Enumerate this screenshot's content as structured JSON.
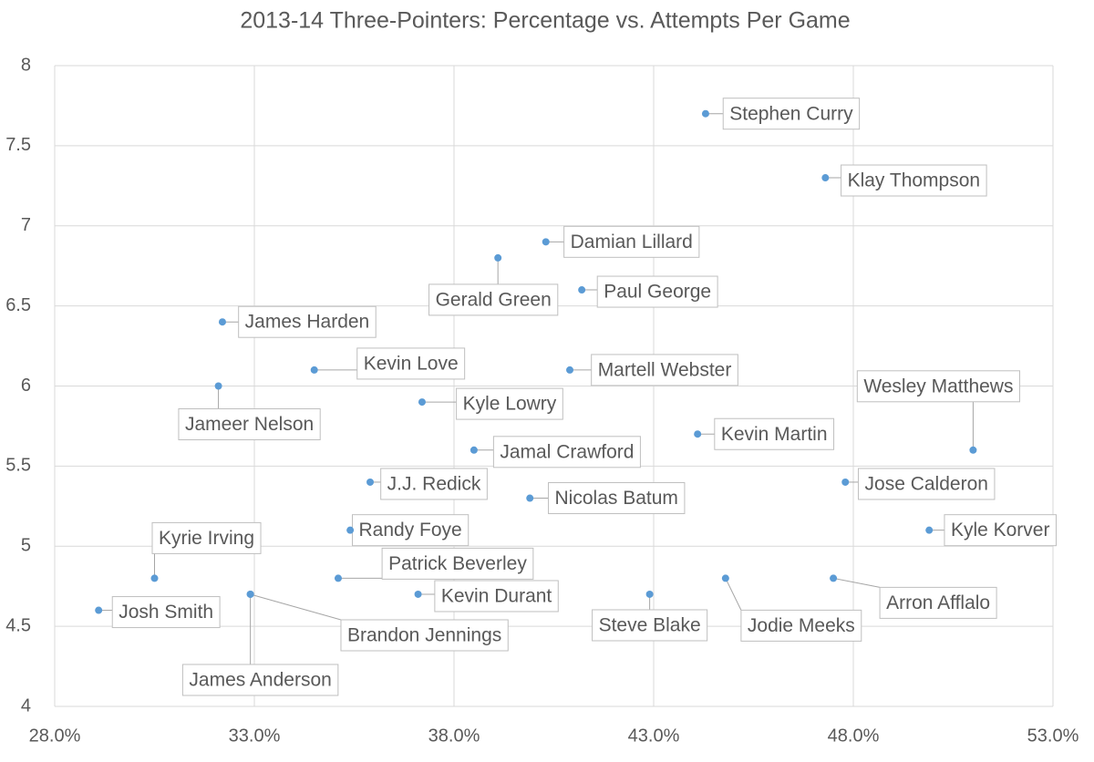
{
  "chart_data": {
    "type": "scatter",
    "title": "2013-14 Three-Pointers: Percentage vs. Attempts Per Game",
    "series": [
      {
        "color": "#5b9bd5",
        "point_labels": [
          "Stephen Curry",
          "Klay Thompson",
          "Damian Lillard",
          "Gerald Green",
          "Paul George",
          "James Harden",
          "Kevin Love",
          "Martell Webster",
          "Jameer Nelson",
          "Kyle Lowry",
          "Wesley Matthews",
          "Kevin Martin",
          "Jamal Crawford",
          "J.J. Redick",
          "Jose Calderon",
          "Nicolas Batum",
          "Randy Foye",
          "Kyle Korver",
          "Kyrie Irving",
          "Patrick Beverley",
          "Jodie Meeks",
          "Arron Afflalo",
          "Kevin Durant",
          "Steve Blake",
          "Brandon Jennings",
          "James Anderson",
          "Josh Smith"
        ],
        "x": [
          44.3,
          47.3,
          40.3,
          39.1,
          41.2,
          32.2,
          34.5,
          40.9,
          32.1,
          37.2,
          51.0,
          44.1,
          38.5,
          35.9,
          47.8,
          39.9,
          35.4,
          49.9,
          30.5,
          35.1,
          44.8,
          47.5,
          37.1,
          42.9,
          32.9,
          32.9,
          29.1
        ],
        "values": [
          7.7,
          7.3,
          6.9,
          6.8,
          6.6,
          6.4,
          6.1,
          6.1,
          6.0,
          5.9,
          5.6,
          5.7,
          5.6,
          5.4,
          5.4,
          5.3,
          5.1,
          5.1,
          4.8,
          4.8,
          4.8,
          4.8,
          4.7,
          4.7,
          4.7,
          4.7,
          4.6
        ]
      }
    ],
    "xlim": [
      28,
      53
    ],
    "xticks": [
      {
        "value": 28,
        "label": "28.0%"
      },
      {
        "value": 33,
        "label": "33.0%"
      },
      {
        "value": 38,
        "label": "38.0%"
      },
      {
        "value": 43,
        "label": "43.0%"
      },
      {
        "value": 48,
        "label": "48.0%"
      },
      {
        "value": 53,
        "label": "53.0%"
      }
    ],
    "ylim": [
      4,
      8
    ],
    "yticks": [
      4,
      4.5,
      5,
      5.5,
      6,
      6.5,
      7,
      7.5,
      8
    ],
    "grid": true
  }
}
